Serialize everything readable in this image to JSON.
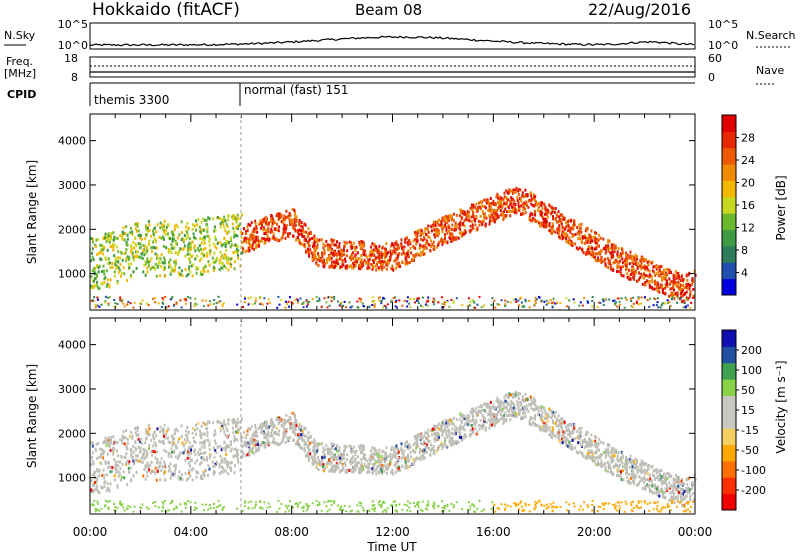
{
  "header": {
    "station": "Hokkaido (fitACF)",
    "beam": "Beam 08",
    "date": "22/Aug/2016"
  },
  "left_labels": {
    "nsky": "N.Sky",
    "freq": "Freq.",
    "mhz": "[MHz]",
    "cpid": "CPID"
  },
  "right_labels": {
    "nsearch": "N.Search",
    "nave": "Nave"
  },
  "cpid_labels": [
    "themis 3300",
    "normal (fast) 151"
  ],
  "colors": {
    "power_scale": [
      "#0000e0",
      "#1f4fb0",
      "#2e7d5a",
      "#3f9a45",
      "#6ab82e",
      "#c8d820",
      "#f2b800",
      "#f08a00",
      "#ec5a00",
      "#e82800",
      "#e00000"
    ],
    "velocity_scale": [
      "#f00000",
      "#ff3000",
      "#ff7000",
      "#ffa800",
      "#f5d060",
      "#c8c8c0",
      "#c8c8c0",
      "#88d24a",
      "#3fa050",
      "#2050a0",
      "#1010b0"
    ],
    "ground_scatter": "#bebeb6"
  },
  "chart_data": [
    {
      "type": "line",
      "title": "",
      "series": [
        {
          "name": "N.Sky"
        },
        {
          "name": "N.Search"
        }
      ],
      "y_ticks_left": [
        "10^5",
        "10^0"
      ],
      "y_ticks_right": [
        "10^5",
        "10^0"
      ]
    },
    {
      "type": "line",
      "series": [
        {
          "name": "Freq."
        },
        {
          "name": "Nave"
        }
      ],
      "y_ticks_left": [
        "18",
        "8"
      ],
      "y_ticks_right": [
        "60",
        "0"
      ]
    },
    {
      "type": "heatmap",
      "quantity": "Power",
      "ylabel": "Slant Range [km]",
      "ylim": [
        180,
        4600
      ],
      "xlim": [
        0,
        24
      ],
      "y_ticks": [
        "1000",
        "2000",
        "3000",
        "4000"
      ],
      "x_ticks": [
        "00:00",
        "04:00",
        "08:00",
        "12:00",
        "16:00",
        "20:00",
        "00:00"
      ],
      "colorbar_label": "Power [dB]",
      "colorbar_ticks": [
        "4",
        "8",
        "12",
        "16",
        "20",
        "24",
        "28"
      ]
    },
    {
      "type": "heatmap",
      "quantity": "Velocity",
      "ylabel": "Slant Range [km]",
      "ylim": [
        180,
        4600
      ],
      "xlim": [
        0,
        24
      ],
      "xlabel": "Time UT",
      "y_ticks": [
        "1000",
        "2000",
        "3000",
        "4000"
      ],
      "x_ticks": [
        "00:00",
        "04:00",
        "08:00",
        "12:00",
        "16:00",
        "20:00",
        "00:00"
      ],
      "colorbar_label": "Velocity [m s⁻¹]",
      "colorbar_ticks": [
        "200",
        "100",
        "50",
        "15",
        "-15",
        "-50",
        "-100",
        "-200"
      ]
    }
  ]
}
